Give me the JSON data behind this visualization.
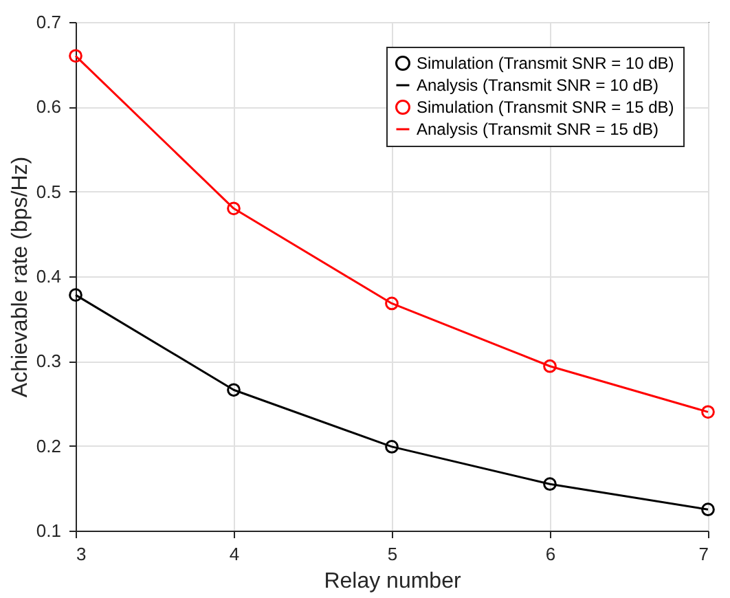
{
  "chart_data": {
    "type": "line",
    "xlabel": "Relay number",
    "ylabel": "Achievable rate (bps/Hz)",
    "x": [
      3,
      4,
      5,
      6,
      7
    ],
    "series": [
      {
        "name": "Simulation (Transmit SNR = 10 dB)",
        "type": "scatter",
        "marker": "circle",
        "color": "#000000",
        "values": [
          0.378,
          0.266,
          0.199,
          0.155,
          0.125
        ]
      },
      {
        "name": "Analysis (Transmit SNR = 10 dB)",
        "marker": "none",
        "color": "#000000",
        "values": [
          0.378,
          0.266,
          0.199,
          0.155,
          0.125
        ]
      },
      {
        "name": "Simulation (Transmit SNR = 15 dB)",
        "type": "scatter",
        "marker": "circle",
        "color": "#ff0000",
        "values": [
          0.66,
          0.48,
          0.368,
          0.294,
          0.24
        ]
      },
      {
        "name": "Analysis (Transmit SNR = 15 dB)",
        "marker": "none",
        "color": "#ff0000",
        "values": [
          0.66,
          0.48,
          0.368,
          0.294,
          0.24
        ]
      }
    ],
    "xlim": [
      3,
      7
    ],
    "xticks": [
      3,
      4,
      5,
      6,
      7
    ],
    "ylim": [
      0.1,
      0.7
    ],
    "yticks": [
      0.1,
      0.2,
      0.3,
      0.4,
      0.5,
      0.6,
      0.7
    ],
    "grid": true,
    "legend": "top right",
    "line_style": "solid"
  }
}
